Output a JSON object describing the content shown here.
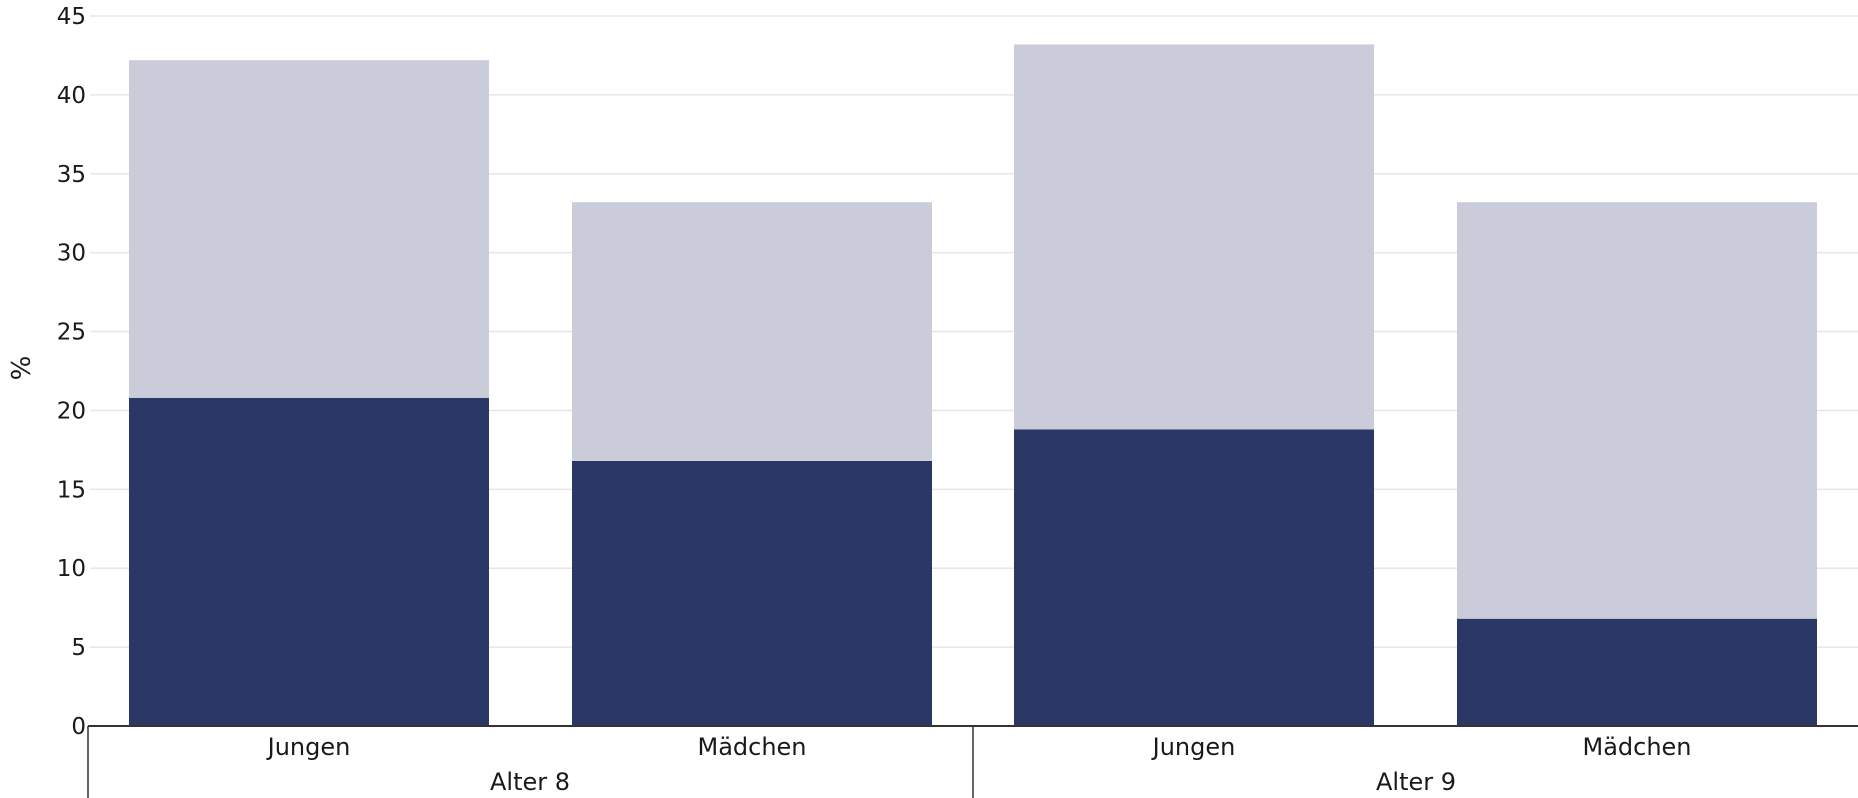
{
  "chart_data": {
    "type": "bar",
    "stacked": true,
    "ylabel": "%",
    "ylim": [
      0,
      45
    ],
    "yticks": [
      0,
      5,
      10,
      15,
      20,
      25,
      30,
      35,
      40,
      45
    ],
    "grid": true,
    "legend": "none",
    "groups": [
      {
        "label": "Alter 8",
        "categories": [
          "Jungen",
          "Mädchen"
        ]
      },
      {
        "label": "Alter 9",
        "categories": [
          "Jungen",
          "Mädchen"
        ]
      }
    ],
    "categories": [
      "Jungen",
      "Mädchen",
      "Jungen",
      "Mädchen"
    ],
    "series": [
      {
        "values": [
          20.8,
          16.8,
          18.8,
          6.8
        ],
        "color": "#2b3765"
      },
      {
        "values": [
          21.4,
          16.4,
          24.4,
          26.4
        ],
        "color": "#cacdd9"
      }
    ],
    "colors": {
      "grid": "#e6e6e6",
      "axis": "#333333"
    }
  }
}
